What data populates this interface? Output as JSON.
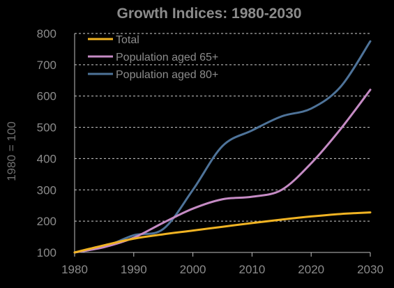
{
  "chart_data": {
    "type": "line",
    "title": "Growth Indices: 1980-2030",
    "xlabel": "",
    "ylabel": "1980 = 100",
    "xlim": [
      1980,
      2030
    ],
    "ylim": [
      100,
      800
    ],
    "x_ticks": [
      1980,
      1990,
      2000,
      2010,
      2020,
      2030
    ],
    "y_ticks": [
      100,
      200,
      300,
      400,
      500,
      600,
      700,
      800
    ],
    "grid": "horizontal",
    "legend": "top-left",
    "x": [
      1980,
      1985,
      1990,
      1995,
      2000,
      2005,
      2010,
      2015,
      2020,
      2025,
      2030
    ],
    "series": [
      {
        "name": "Total",
        "color": "#F0B323",
        "values": [
          100,
          123,
          144,
          158,
          170,
          182,
          194,
          205,
          215,
          223,
          228
        ]
      },
      {
        "name": "Population aged 65+",
        "color": "#C58BC4",
        "values": [
          100,
          117,
          147,
          195,
          240,
          270,
          278,
          300,
          385,
          495,
          620
        ]
      },
      {
        "name": "Population aged 80+",
        "color": "#4E7399",
        "values": [
          100,
          118,
          155,
          175,
          300,
          440,
          490,
          535,
          560,
          630,
          775
        ]
      }
    ]
  }
}
